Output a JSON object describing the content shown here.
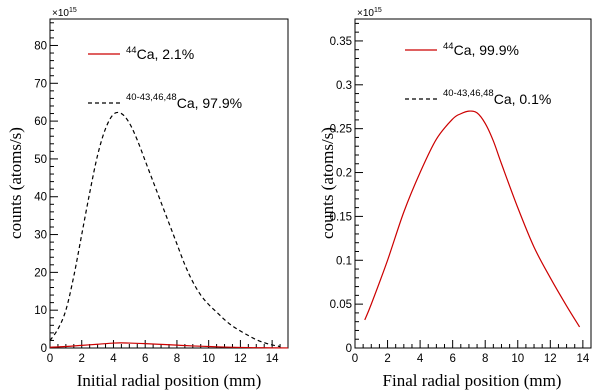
{
  "chart_data": [
    {
      "type": "line",
      "xlabel": "Initial radial position (mm)",
      "ylabel": "counts (atoms/s)",
      "y_exponent_label": "×10",
      "y_exponent_power": "15",
      "xlim": [
        0,
        15
      ],
      "ylim": [
        0,
        87
      ],
      "x_ticks": [
        0,
        2,
        4,
        6,
        8,
        10,
        12,
        14
      ],
      "y_ticks": [
        0,
        10,
        20,
        30,
        40,
        50,
        60,
        70,
        80
      ],
      "grid": false,
      "legend_position": "top-center",
      "series": [
        {
          "name_sup": "44",
          "name_text": "Ca, 2.1%",
          "color": "#cc0000",
          "style": "solid",
          "x": [
            0.0,
            1.0,
            2.0,
            3.0,
            4.0,
            4.5,
            5.0,
            6.0,
            7.0,
            8.0,
            9.0,
            10.0,
            11.0,
            12.0,
            13.0,
            14.0,
            15.0
          ],
          "y": [
            0.2,
            0.4,
            0.7,
            1.0,
            1.3,
            1.35,
            1.3,
            1.15,
            0.95,
            0.75,
            0.55,
            0.4,
            0.25,
            0.15,
            0.08,
            0.04,
            0.02
          ]
        },
        {
          "name_sup": "40-43,46,48",
          "name_text": "Ca, 97.9%",
          "color": "#000000",
          "style": "dashed",
          "x": [
            0.0,
            0.5,
            1.0,
            1.5,
            2.0,
            2.5,
            3.0,
            3.5,
            4.0,
            4.5,
            5.0,
            5.5,
            6.0,
            6.5,
            7.0,
            7.5,
            8.0,
            8.5,
            9.0,
            9.5,
            10.0,
            10.5,
            11.0,
            11.5,
            12.0,
            12.5,
            13.0,
            13.5,
            14.0,
            14.5
          ],
          "y": [
            2.0,
            5.0,
            10.0,
            19.0,
            30.0,
            41.0,
            51.0,
            58.0,
            61.8,
            62.0,
            59.5,
            55.0,
            49.5,
            44.0,
            38.5,
            33.0,
            27.5,
            22.0,
            17.5,
            14.0,
            11.5,
            9.5,
            7.5,
            5.8,
            4.5,
            3.3,
            2.2,
            1.4,
            0.8,
            0.4
          ]
        }
      ]
    },
    {
      "type": "line",
      "xlabel": "Final radial position (mm)",
      "ylabel": "counts (atoms/s)",
      "y_exponent_label": "×10",
      "y_exponent_power": "15",
      "xlim": [
        0,
        14.5
      ],
      "ylim": [
        0,
        0.375
      ],
      "x_ticks": [
        0,
        2,
        4,
        6,
        8,
        10,
        12,
        14
      ],
      "y_ticks": [
        0,
        0.05,
        0.1,
        0.15,
        0.2,
        0.25,
        0.3,
        0.35
      ],
      "y_tick_labels": [
        "0",
        "0.05",
        "0.1",
        "0.15",
        "0.2",
        "0.25",
        "0.3",
        "0.35"
      ],
      "grid": false,
      "legend_position": "top-center",
      "series": [
        {
          "name_sup": "44",
          "name_text": "Ca, 99.9%",
          "color": "#cc0000",
          "style": "solid",
          "x": [
            0.6,
            1.0,
            2.0,
            3.0,
            4.0,
            5.0,
            6.0,
            6.5,
            7.0,
            7.5,
            8.0,
            8.5,
            9.0,
            10.0,
            11.0,
            12.0,
            13.0,
            13.8
          ],
          "y": [
            0.032,
            0.05,
            0.1,
            0.155,
            0.2,
            0.238,
            0.261,
            0.267,
            0.27,
            0.268,
            0.256,
            0.236,
            0.21,
            0.16,
            0.115,
            0.08,
            0.048,
            0.024
          ]
        },
        {
          "name_sup": "40-43,46,48",
          "name_text": "Ca, 0.1%",
          "color": "#000000",
          "style": "dashed",
          "x": [],
          "y": []
        }
      ]
    }
  ]
}
